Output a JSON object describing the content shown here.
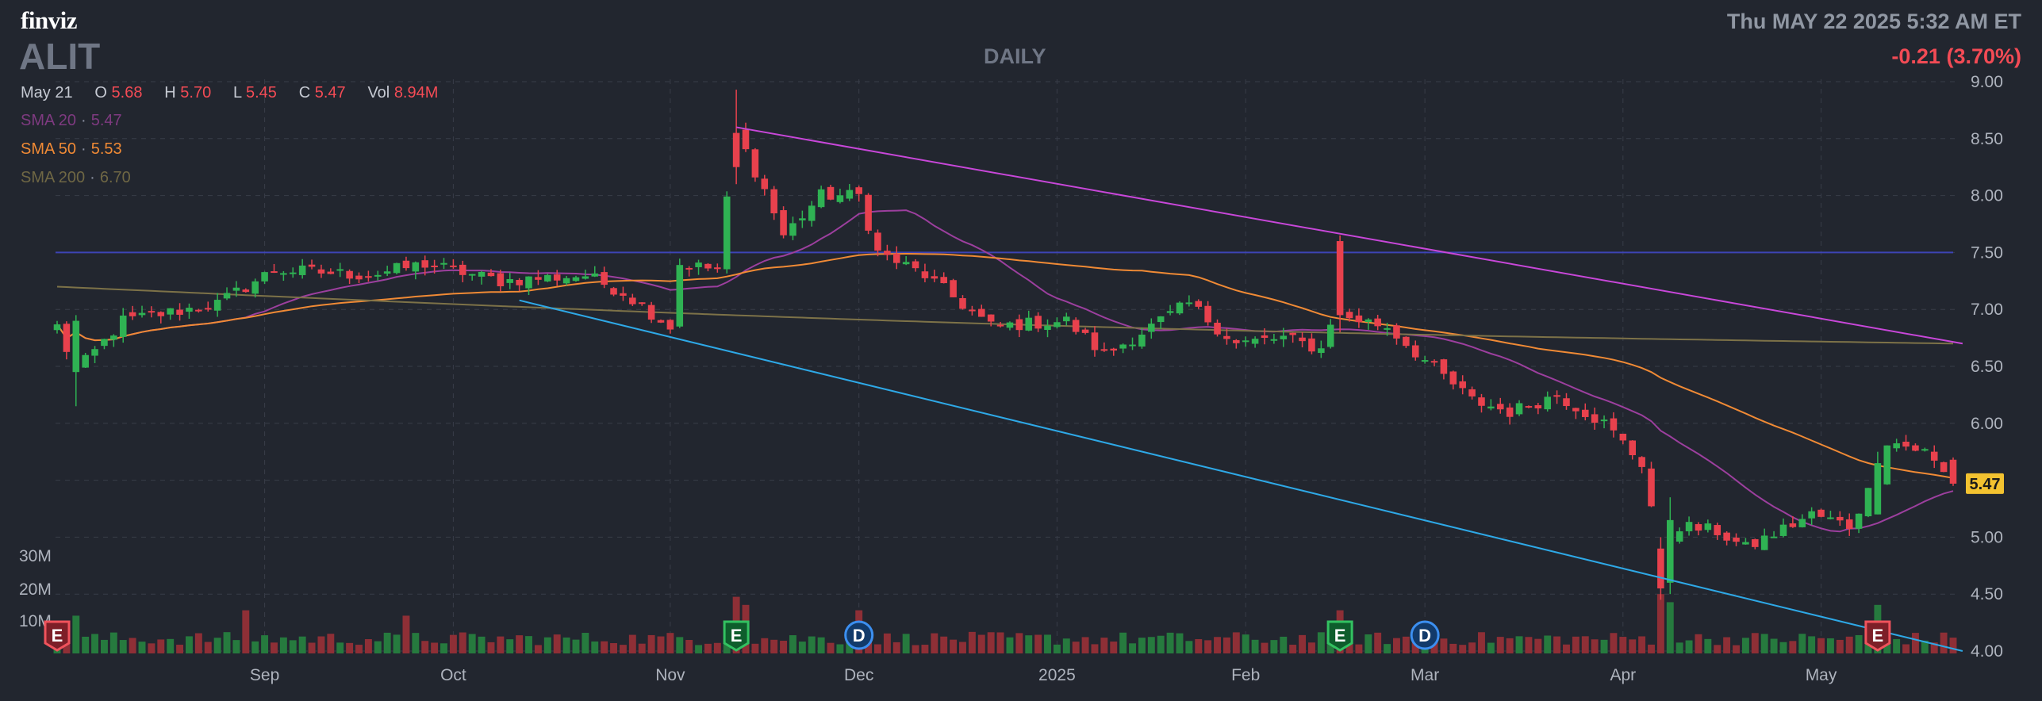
{
  "header": {
    "logo": "finviz",
    "ticker": "ALIT",
    "timeframe": "DAILY",
    "datetime": "Thu MAY 22 2025 5:32 AM ET",
    "change": "-0.21 (3.70%)"
  },
  "ohlc": {
    "date": "May 21",
    "open_label": "O",
    "open": "5.68",
    "high_label": "H",
    "high": "5.70",
    "low_label": "L",
    "low": "5.45",
    "close_label": "C",
    "close": "5.47",
    "vol_label": "Vol",
    "vol": "8.94M"
  },
  "sma_legend": [
    {
      "name": "SMA 20",
      "value": "5.47",
      "color": "#9c3f9e"
    },
    {
      "name": "SMA 50",
      "value": "5.53",
      "color": "#f08a35"
    },
    {
      "name": "SMA 200",
      "value": "6.70",
      "color": "#7d7248"
    }
  ],
  "colors": {
    "up": "#2fb253",
    "down": "#e8414d",
    "vol_up": "#267a3e",
    "vol_down": "#8e2f36",
    "upper_trendline": "#c847d9",
    "lower_trendline": "#2ea8e6",
    "horizontal_line": "#3d44b5",
    "grid": "#383d48",
    "last_price_tag": "#f3c230"
  },
  "chart_data": {
    "type": "candlestick",
    "title": "ALIT",
    "y_axis": {
      "min": 4.0,
      "max": 9.0,
      "ticks": [
        "9.00",
        "8.50",
        "8.00",
        "7.50",
        "7.00",
        "6.50",
        "6.00",
        "5.00",
        "4.50",
        "4.00"
      ]
    },
    "volume_axis": {
      "ticks": [
        "30M",
        "20M",
        "10M"
      ]
    },
    "x_axis": {
      "labels": [
        "Sep",
        "Oct",
        "Nov",
        "Dec",
        "2025",
        "Feb",
        "Mar",
        "Apr",
        "May"
      ]
    },
    "last_price": "5.47",
    "horizontal_line": 7.5,
    "waypoints": [
      [
        "Aug 1",
        6.85
      ],
      [
        "Aug 5",
        6.45
      ],
      [
        "Aug 12",
        6.9
      ],
      [
        "Aug 26",
        7.05
      ],
      [
        "Sep 4",
        7.35
      ],
      [
        "Sep 18",
        7.3
      ],
      [
        "Sep 26",
        7.4
      ],
      [
        "Oct 8",
        7.25
      ],
      [
        "Oct 21",
        7.3
      ],
      [
        "Oct 25",
        7.15
      ],
      [
        "Nov 1",
        6.85
      ],
      [
        "Nov 4",
        7.4
      ],
      [
        "Nov 8",
        7.35
      ],
      [
        "Nov 12",
        8.55
      ],
      [
        "Nov 15",
        8.05
      ],
      [
        "Nov 19",
        7.65
      ],
      [
        "Nov 25",
        8.0
      ],
      [
        "Dec 2",
        8.0
      ],
      [
        "Dec 4",
        7.5
      ],
      [
        "Dec 11",
        7.3
      ],
      [
        "Dec 20",
        6.85
      ],
      [
        "Jan 3",
        6.9
      ],
      [
        "Jan 10",
        6.6
      ],
      [
        "Jan 17",
        6.85
      ],
      [
        "Jan 24",
        7.05
      ],
      [
        "Jan 31",
        6.7
      ],
      [
        "Feb 7",
        6.75
      ],
      [
        "Feb 13",
        6.65
      ],
      [
        "Feb 17",
        7.15
      ],
      [
        "Feb 18",
        6.95
      ],
      [
        "Feb 25",
        6.85
      ],
      [
        "Mar 3",
        6.55
      ],
      [
        "Mar 10",
        6.2
      ],
      [
        "Mar 14",
        6.1
      ],
      [
        "Mar 21",
        6.25
      ],
      [
        "Mar 28",
        6.0
      ],
      [
        "Apr 3",
        5.65
      ],
      [
        "Apr 7",
        4.9
      ],
      [
        "Apr 9",
        5.1
      ],
      [
        "Apr 15",
        5.05
      ],
      [
        "Apr 21",
        4.9
      ],
      [
        "Apr 30",
        5.2
      ],
      [
        "May 6",
        5.1
      ],
      [
        "May 9",
        5.55
      ],
      [
        "May 12",
        5.85
      ],
      [
        "May 16",
        5.75
      ],
      [
        "May 21",
        5.47
      ]
    ],
    "big_candles": [
      {
        "date": "Aug 5",
        "o": 6.45,
        "h": 6.95,
        "l": 6.15,
        "c": 6.9
      },
      {
        "date": "Nov 12",
        "o": 8.55,
        "h": 8.93,
        "l": 8.1,
        "c": 8.25
      },
      {
        "date": "Feb 17",
        "o": 7.6,
        "h": 7.65,
        "l": 6.8,
        "c": 6.95
      },
      {
        "date": "Apr 7",
        "o": 4.9,
        "h": 5.0,
        "l": 4.45,
        "c": 4.55
      },
      {
        "date": "Apr 8",
        "o": 4.6,
        "h": 5.35,
        "l": 4.5,
        "c": 5.15
      },
      {
        "date": "May 9",
        "o": 5.2,
        "h": 5.75,
        "l": 5.2,
        "c": 5.65
      }
    ],
    "volume_spikes": [
      {
        "date": "Aug 5",
        "volume": 14
      },
      {
        "date": "Aug 29",
        "volume": 16
      },
      {
        "date": "Sep 24",
        "volume": 14
      },
      {
        "date": "Nov 12",
        "volume": 21
      },
      {
        "date": "Nov 13",
        "volume": 18
      },
      {
        "date": "Dec 2",
        "volume": 16
      },
      {
        "date": "Feb 17",
        "volume": 16
      },
      {
        "date": "Apr 7",
        "volume": 22
      },
      {
        "date": "Apr 8",
        "volume": 19
      },
      {
        "date": "May 9",
        "volume": 18
      }
    ],
    "trendlines": [
      {
        "name": "upper",
        "start": [
          "Nov 12",
          8.6
        ],
        "end": [
          "May 22",
          6.7
        ]
      },
      {
        "name": "lower",
        "start": [
          "Oct 10",
          7.08
        ],
        "end": [
          "May 22",
          4.0
        ]
      }
    ],
    "event_markers": [
      {
        "date": "Aug 1",
        "letter": "E",
        "type": "earnings-miss"
      },
      {
        "date": "Nov 12",
        "letter": "E",
        "type": "earnings-beat"
      },
      {
        "date": "Dec 2",
        "letter": "D",
        "type": "dividend"
      },
      {
        "date": "Feb 17",
        "letter": "E",
        "type": "earnings-beat"
      },
      {
        "date": "Mar 3",
        "letter": "D",
        "type": "dividend"
      },
      {
        "date": "May 9",
        "letter": "E",
        "type": "earnings-miss"
      }
    ]
  }
}
